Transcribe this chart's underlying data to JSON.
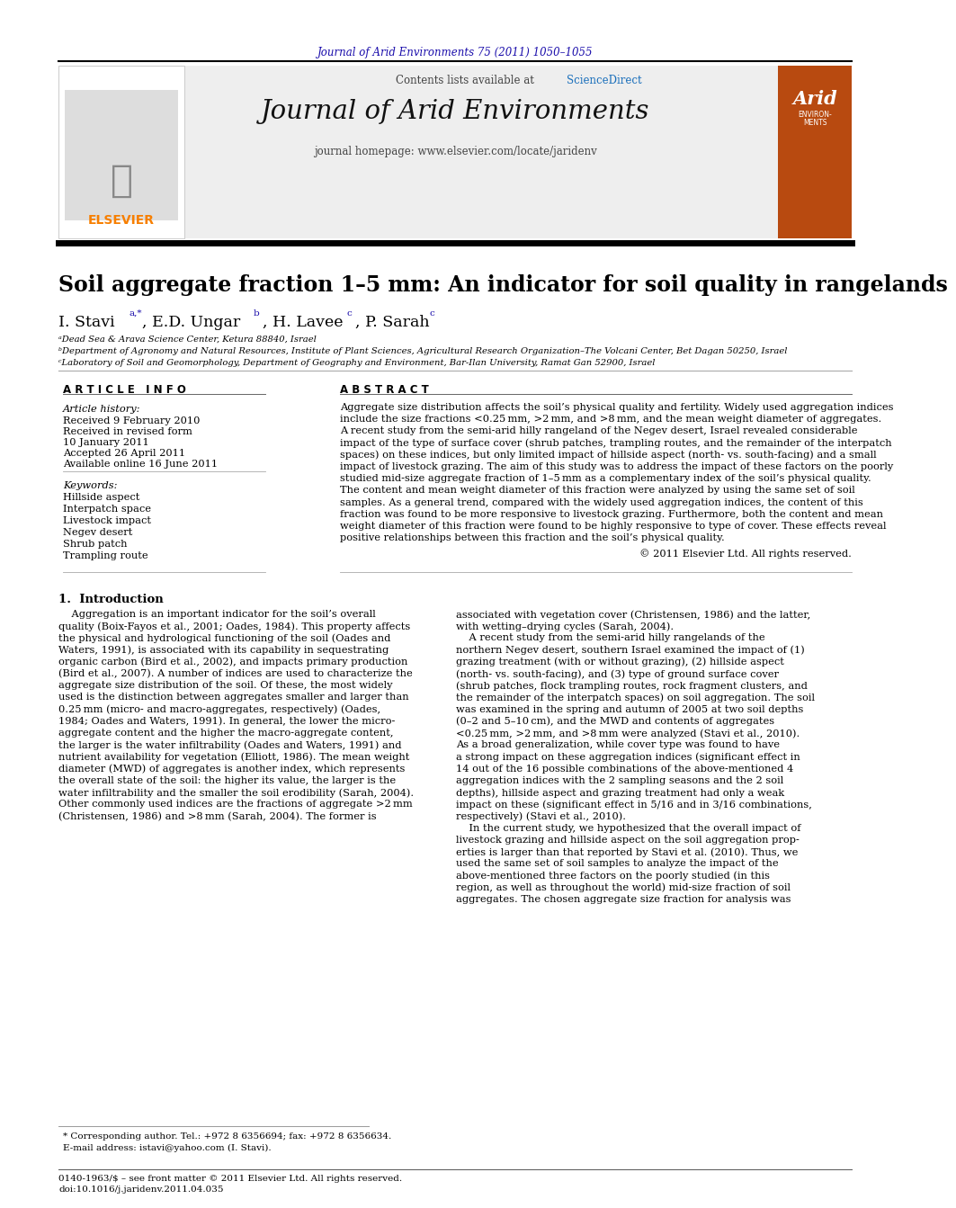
{
  "page_title": "Journal of Arid Environments 75 (2011) 1050–1055",
  "journal_name": "Journal of Arid Environments",
  "contents_line": "Contents lists available at ScienceDirect",
  "homepage_line": "journal homepage: www.elsevier.com/locate/jaridenv",
  "article_title": "Soil aggregate fraction 1–5 mm: An indicator for soil quality in rangelands",
  "affil_a": "ᵃDead Sea & Arava Science Center, Ketura 88840, Israel",
  "affil_b": "ᵇDepartment of Agronomy and Natural Resources, Institute of Plant Sciences, Agricultural Research Organization–The Volcani Center, Bet Dagan 50250, Israel",
  "affil_c": "ᶜLaboratory of Soil and Geomorphology, Department of Geography and Environment, Bar-Ilan University, Ramat Gan 52900, Israel",
  "article_info_header": "A R T I C L E   I N F O",
  "abstract_header": "A B S T R A C T",
  "article_history_label": "Article history:",
  "received_1": "Received 9 February 2010",
  "received_2": "Received in revised form",
  "received_2b": "10 January 2011",
  "accepted": "Accepted 26 April 2011",
  "available": "Available online 16 June 2011",
  "keywords_label": "Keywords:",
  "keywords": [
    "Hillside aspect",
    "Interpatch space",
    "Livestock impact",
    "Negev desert",
    "Shrub patch",
    "Trampling route"
  ],
  "copyright_line": "© 2011 Elsevier Ltd. All rights reserved.",
  "intro_header": "1.  Introduction",
  "footnote_star": "* Corresponding author. Tel.: +972 8 6356694; fax: +972 8 6356634.",
  "footnote_email": "E-mail address: istavi@yahoo.com (I. Stavi).",
  "footer_line1": "0140-1963/$ – see front matter © 2011 Elsevier Ltd. All rights reserved.",
  "footer_line2": "doi:10.1016/j.jaridenv.2011.04.035",
  "background_color": "#ffffff",
  "blue_color": "#1a0dab",
  "sciencedirect_color": "#1a6fbb",
  "link_color": "#1a6fbb",
  "text_color": "#000000",
  "title_color": "#000000",
  "abstract_lines": [
    "Aggregate size distribution affects the soil’s physical quality and fertility. Widely used aggregation indices",
    "include the size fractions <0.25 mm, >2 mm, and >8 mm, and the mean weight diameter of aggregates.",
    "A recent study from the semi-arid hilly rangeland of the Negev desert, Israel revealed considerable",
    "impact of the type of surface cover (shrub patches, trampling routes, and the remainder of the interpatch",
    "spaces) on these indices, but only limited impact of hillside aspect (north- vs. south-facing) and a small",
    "impact of livestock grazing. The aim of this study was to address the impact of these factors on the poorly",
    "studied mid-size aggregate fraction of 1–5 mm as a complementary index of the soil’s physical quality.",
    "The content and mean weight diameter of this fraction were analyzed by using the same set of soil",
    "samples. As a general trend, compared with the widely used aggregation indices, the content of this",
    "fraction was found to be more responsive to livestock grazing. Furthermore, both the content and mean",
    "weight diameter of this fraction were found to be highly responsive to type of cover. These effects reveal",
    "positive relationships between this fraction and the soil’s physical quality."
  ],
  "col1_lines": [
    "    Aggregation is an important indicator for the soil’s overall",
    "quality (Boix-Fayos et al., 2001; Oades, 1984). This property affects",
    "the physical and hydrological functioning of the soil (Oades and",
    "Waters, 1991), is associated with its capability in sequestrating",
    "organic carbon (Bird et al., 2002), and impacts primary production",
    "(Bird et al., 2007). A number of indices are used to characterize the",
    "aggregate size distribution of the soil. Of these, the most widely",
    "used is the distinction between aggregates smaller and larger than",
    "0.25 mm (micro- and macro-aggregates, respectively) (Oades,",
    "1984; Oades and Waters, 1991). In general, the lower the micro-",
    "aggregate content and the higher the macro-aggregate content,",
    "the larger is the water infiltrability (Oades and Waters, 1991) and",
    "nutrient availability for vegetation (Elliott, 1986). The mean weight",
    "diameter (MWD) of aggregates is another index, which represents",
    "the overall state of the soil: the higher its value, the larger is the",
    "water infiltrability and the smaller the soil erodibility (Sarah, 2004).",
    "Other commonly used indices are the fractions of aggregate >2 mm",
    "(Christensen, 1986) and >8 mm (Sarah, 2004). The former is"
  ],
  "col2_lines": [
    "associated with vegetation cover (Christensen, 1986) and the latter,",
    "with wetting–drying cycles (Sarah, 2004).",
    "    A recent study from the semi-arid hilly rangelands of the",
    "northern Negev desert, southern Israel examined the impact of (1)",
    "grazing treatment (with or without grazing), (2) hillside aspect",
    "(north- vs. south-facing), and (3) type of ground surface cover",
    "(shrub patches, flock trampling routes, rock fragment clusters, and",
    "the remainder of the interpatch spaces) on soil aggregation. The soil",
    "was examined in the spring and autumn of 2005 at two soil depths",
    "(0–2 and 5–10 cm), and the MWD and contents of aggregates",
    "<0.25 mm, >2 mm, and >8 mm were analyzed (Stavi et al., 2010).",
    "As a broad generalization, while cover type was found to have",
    "a strong impact on these aggregation indices (significant effect in",
    "14 out of the 16 possible combinations of the above-mentioned 4",
    "aggregation indices with the 2 sampling seasons and the 2 soil",
    "depths), hillside aspect and grazing treatment had only a weak",
    "impact on these (significant effect in 5/16 and in 3/16 combinations,",
    "respectively) (Stavi et al., 2010).",
    "    In the current study, we hypothesized that the overall impact of",
    "livestock grazing and hillside aspect on the soil aggregation prop-",
    "erties is larger than that reported by Stavi et al. (2010). Thus, we",
    "used the same set of soil samples to analyze the impact of the",
    "above-mentioned three factors on the poorly studied (in this",
    "region, as well as throughout the world) mid-size fraction of soil",
    "aggregates. The chosen aggregate size fraction for analysis was"
  ]
}
